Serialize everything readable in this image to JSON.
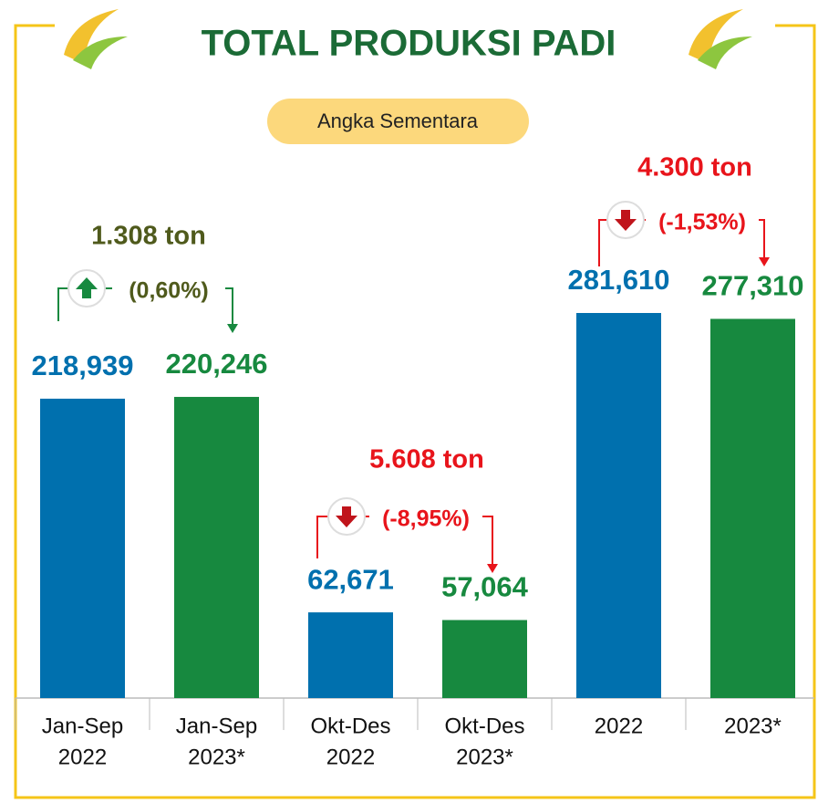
{
  "chart_data": {
    "type": "bar",
    "title": "TOTAL PRODUKSI PADI",
    "subtitle": "Angka Sementara",
    "categories": [
      [
        "Jan-Sep",
        "2022"
      ],
      [
        "Jan-Sep",
        "2023*"
      ],
      [
        "Okt-Des",
        "2022"
      ],
      [
        "Okt-Des",
        "2023*"
      ],
      [
        "2022"
      ],
      [
        "2023*"
      ]
    ],
    "values": [
      218939,
      220246,
      62671,
      57064,
      281610,
      277310
    ],
    "value_labels": [
      "218,939",
      "220,246",
      "62,671",
      "57,064",
      "281,610",
      "277,310"
    ],
    "colors": [
      "#0070ae",
      "#17893f",
      "#0070ae",
      "#17893f",
      "#0070ae",
      "#17893f"
    ],
    "annotations": [
      {
        "text": "1.308 ton",
        "change": "(0,60%)",
        "color": "#4f5a1c",
        "direction": "up"
      },
      {
        "text": "5.608 ton",
        "change": "(-8,95%)",
        "color": "#e8141b",
        "direction": "down"
      },
      {
        "text": "4.300 ton",
        "change": "(-1,53%)",
        "color": "#e8141b",
        "direction": "down"
      }
    ]
  }
}
